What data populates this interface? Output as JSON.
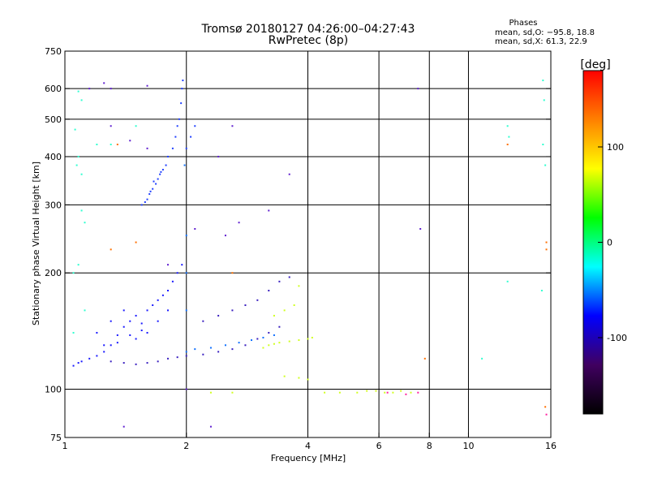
{
  "chart_data": {
    "type": "scatter",
    "title": "Tromsø 20180127 04:26:00–04:27:43",
    "subtitle": "RwPretec (8p)",
    "xlabel": "Frequency [MHz]",
    "ylabel": "Stationary phase Virtual Height [km]",
    "x_scale": "log",
    "y_scale": "log",
    "xlim": [
      1,
      16
    ],
    "ylim": [
      75,
      750
    ],
    "x_ticks": [
      1,
      2,
      4,
      6,
      8,
      10,
      16
    ],
    "x_gridlines": [
      2,
      4,
      6,
      8,
      10
    ],
    "y_ticks": [
      75,
      100,
      200,
      300,
      400,
      500,
      600,
      750
    ],
    "y_gridlines": [
      100,
      200,
      300,
      400,
      500,
      600
    ],
    "grid": true,
    "phase_box": {
      "title": "Phases",
      "line_o": "mean, sd,O: −95.8, 18.8",
      "line_x": "mean, sd,X:  61.3, 22.9"
    },
    "colorbar": {
      "label": "[deg]",
      "range": [
        -180,
        180
      ],
      "ticks": [
        100,
        0,
        -100
      ],
      "colors": [
        "#ff0000",
        "#ff8000",
        "#ffff00",
        "#00ff00",
        "#00ffff",
        "#0000ff",
        "#400060",
        "#000000"
      ]
    },
    "series": [
      {
        "color": "#1a1aff",
        "points": [
          [
            1.05,
            115
          ],
          [
            1.08,
            117
          ],
          [
            1.1,
            118
          ],
          [
            1.15,
            120
          ],
          [
            1.2,
            122
          ],
          [
            1.25,
            125
          ],
          [
            1.3,
            130
          ],
          [
            1.35,
            138
          ],
          [
            1.4,
            145
          ],
          [
            1.45,
            150
          ],
          [
            1.5,
            155
          ],
          [
            1.55,
            148
          ],
          [
            1.6,
            160
          ],
          [
            1.65,
            165
          ],
          [
            1.7,
            170
          ],
          [
            1.75,
            175
          ],
          [
            1.8,
            180
          ],
          [
            1.85,
            190
          ],
          [
            1.9,
            200
          ],
          [
            1.95,
            210
          ],
          [
            1.2,
            140
          ],
          [
            1.3,
            150
          ],
          [
            1.4,
            160
          ],
          [
            1.5,
            135
          ],
          [
            1.6,
            140
          ],
          [
            1.7,
            150
          ],
          [
            1.8,
            160
          ],
          [
            1.25,
            130
          ],
          [
            1.35,
            132
          ],
          [
            1.45,
            138
          ],
          [
            1.55,
            142
          ]
        ]
      },
      {
        "color": "#2040ff",
        "points": [
          [
            1.55,
            300
          ],
          [
            1.6,
            310
          ],
          [
            1.62,
            320
          ],
          [
            1.65,
            330
          ],
          [
            1.68,
            340
          ],
          [
            1.7,
            350
          ],
          [
            1.72,
            360
          ],
          [
            1.75,
            370
          ],
          [
            1.78,
            380
          ],
          [
            1.8,
            400
          ],
          [
            1.85,
            420
          ],
          [
            1.88,
            450
          ],
          [
            1.9,
            480
          ],
          [
            1.92,
            500
          ],
          [
            1.94,
            550
          ],
          [
            1.95,
            600
          ],
          [
            1.96,
            630
          ],
          [
            2.0,
            420
          ],
          [
            2.05,
            450
          ],
          [
            2.1,
            480
          ],
          [
            1.58,
            305
          ],
          [
            1.63,
            325
          ],
          [
            1.66,
            345
          ],
          [
            1.73,
            365
          ]
        ]
      },
      {
        "color": "#3a20c0",
        "points": [
          [
            1.3,
            118
          ],
          [
            1.4,
            117
          ],
          [
            1.5,
            116
          ],
          [
            1.6,
            117
          ],
          [
            1.7,
            118
          ],
          [
            1.8,
            120
          ],
          [
            1.9,
            121
          ],
          [
            2.0,
            122
          ],
          [
            2.2,
            123
          ],
          [
            2.4,
            125
          ],
          [
            2.6,
            127
          ],
          [
            2.8,
            130
          ],
          [
            3.0,
            135
          ],
          [
            3.2,
            140
          ],
          [
            3.4,
            145
          ],
          [
            2.2,
            150
          ],
          [
            2.4,
            155
          ],
          [
            2.6,
            160
          ],
          [
            2.8,
            165
          ],
          [
            3.0,
            170
          ],
          [
            3.2,
            180
          ],
          [
            3.4,
            190
          ],
          [
            3.6,
            195
          ]
        ]
      },
      {
        "color": "#1070ff",
        "points": [
          [
            2.0,
            125
          ],
          [
            2.1,
            127
          ],
          [
            2.3,
            128
          ],
          [
            2.5,
            130
          ],
          [
            2.7,
            132
          ],
          [
            2.9,
            134
          ],
          [
            3.1,
            136
          ],
          [
            3.3,
            138
          ],
          [
            2.0,
            160
          ],
          [
            2.0,
            200
          ],
          [
            2.0,
            250
          ],
          [
            1.98,
            380
          ]
        ]
      },
      {
        "color": "#d0ff20",
        "points": [
          [
            3.1,
            128
          ],
          [
            3.2,
            130
          ],
          [
            3.3,
            131
          ],
          [
            3.4,
            132
          ],
          [
            3.6,
            133
          ],
          [
            3.8,
            134
          ],
          [
            4.0,
            135
          ],
          [
            4.1,
            136
          ],
          [
            3.3,
            155
          ],
          [
            3.5,
            160
          ],
          [
            3.7,
            165
          ],
          [
            3.8,
            185
          ],
          [
            3.5,
            108
          ],
          [
            3.8,
            107
          ],
          [
            4.0,
            106
          ],
          [
            2.3,
            98
          ],
          [
            2.6,
            98
          ],
          [
            4.4,
            98
          ],
          [
            4.8,
            98
          ],
          [
            5.3,
            98
          ],
          [
            5.6,
            99
          ],
          [
            5.9,
            99
          ],
          [
            6.2,
            98
          ],
          [
            6.5,
            98
          ],
          [
            6.8,
            99
          ],
          [
            7.2,
            98
          ]
        ]
      },
      {
        "color": "#30ffd0",
        "points": [
          [
            1.08,
            590
          ],
          [
            1.1,
            560
          ],
          [
            1.06,
            470
          ],
          [
            1.08,
            400
          ],
          [
            1.07,
            380
          ],
          [
            1.1,
            360
          ],
          [
            1.1,
            290
          ],
          [
            1.12,
            270
          ],
          [
            1.08,
            210
          ],
          [
            1.05,
            200
          ],
          [
            1.12,
            160
          ],
          [
            1.05,
            140
          ],
          [
            1.2,
            430
          ],
          [
            1.3,
            430
          ],
          [
            1.5,
            480
          ],
          [
            12.5,
            480
          ],
          [
            12.6,
            450
          ],
          [
            15.3,
            630
          ],
          [
            15.4,
            560
          ],
          [
            15.3,
            430
          ],
          [
            15.5,
            380
          ],
          [
            15.2,
            180
          ],
          [
            10.8,
            120
          ],
          [
            12.5,
            190
          ]
        ]
      },
      {
        "color": "#ff7000",
        "points": [
          [
            1.35,
            430
          ],
          [
            1.3,
            230
          ],
          [
            1.5,
            240
          ],
          [
            2.6,
            200
          ],
          [
            15.6,
            240
          ],
          [
            15.6,
            230
          ],
          [
            15.5,
            90
          ],
          [
            12.5,
            430
          ],
          [
            7.8,
            120
          ]
        ]
      },
      {
        "color": "#ff20a0",
        "points": [
          [
            6.3,
            98
          ],
          [
            7.0,
            97
          ],
          [
            7.5,
            98
          ],
          [
            15.6,
            86
          ]
        ]
      },
      {
        "color": "#6020d0",
        "points": [
          [
            1.3,
            600
          ],
          [
            1.25,
            620
          ],
          [
            1.3,
            480
          ],
          [
            1.45,
            440
          ],
          [
            1.6,
            420
          ],
          [
            1.8,
            210
          ],
          [
            2.1,
            260
          ],
          [
            2.5,
            250
          ],
          [
            2.7,
            270
          ],
          [
            2.4,
            400
          ],
          [
            2.6,
            480
          ],
          [
            3.2,
            290
          ],
          [
            3.6,
            360
          ],
          [
            7.5,
            600
          ],
          [
            7.6,
            260
          ],
          [
            1.6,
            610
          ],
          [
            1.15,
            600
          ],
          [
            1.4,
            80
          ],
          [
            2.0,
            100
          ],
          [
            2.3,
            80
          ]
        ]
      }
    ]
  }
}
